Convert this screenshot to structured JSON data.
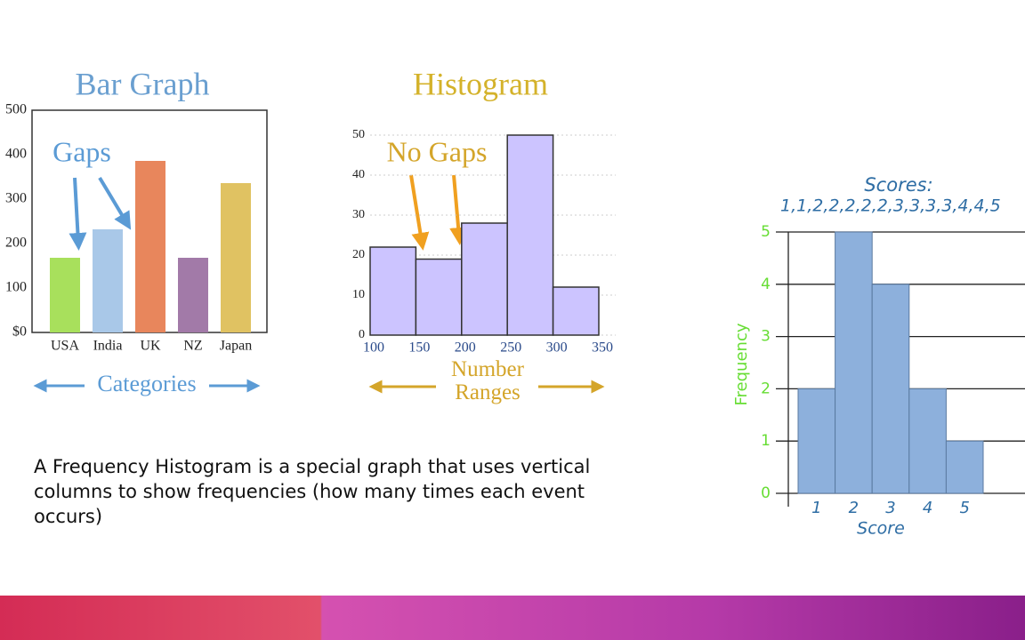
{
  "chart_data": [
    {
      "type": "bar",
      "title": "Bar Graph",
      "annotation": "Gaps",
      "x_label": "Categories",
      "categories": [
        "USA",
        "India",
        "UK",
        "NZ",
        "Japan"
      ],
      "values": [
        168,
        232,
        386,
        168,
        336
      ],
      "colors": [
        "#a8e05c",
        "#a9c8e8",
        "#e8865c",
        "#a27aa8",
        "#e0c262"
      ],
      "ylim": [
        0,
        500
      ],
      "yticks": [
        {
          "value": 0,
          "label": "$0"
        },
        100,
        200,
        300,
        400,
        500
      ]
    },
    {
      "type": "histogram",
      "title": "Histogram",
      "annotation": "No Gaps",
      "x_label": "Number Ranges",
      "bins": [
        100,
        150,
        200,
        250,
        300,
        350
      ],
      "values": [
        22,
        19,
        28,
        50,
        12
      ],
      "color": "#ccc4ff",
      "xlim": [
        100,
        350
      ],
      "xticks": [
        100,
        150,
        200,
        250,
        300,
        350
      ],
      "ylim": [
        0,
        50
      ],
      "yticks": [
        0,
        10,
        20,
        30,
        40,
        50
      ],
      "grid": true
    },
    {
      "type": "bar",
      "title": "Scores:",
      "subtitle": "1,1,2,2,2,2,2,3,3,3,3,4,4,5",
      "categories": [
        "1",
        "2",
        "3",
        "4",
        "5"
      ],
      "values": [
        2,
        5,
        4,
        2,
        1
      ],
      "color": "#8db0dc",
      "x_label": "Score",
      "y_label": "Frequency",
      "ylim": [
        0,
        5
      ],
      "yticks": [
        0,
        1,
        2,
        3,
        4,
        5
      ],
      "grid": true
    }
  ],
  "text": "A Frequency Histogram is a special graph that uses vertical columns to show frequencies (how many times each event occurs)"
}
